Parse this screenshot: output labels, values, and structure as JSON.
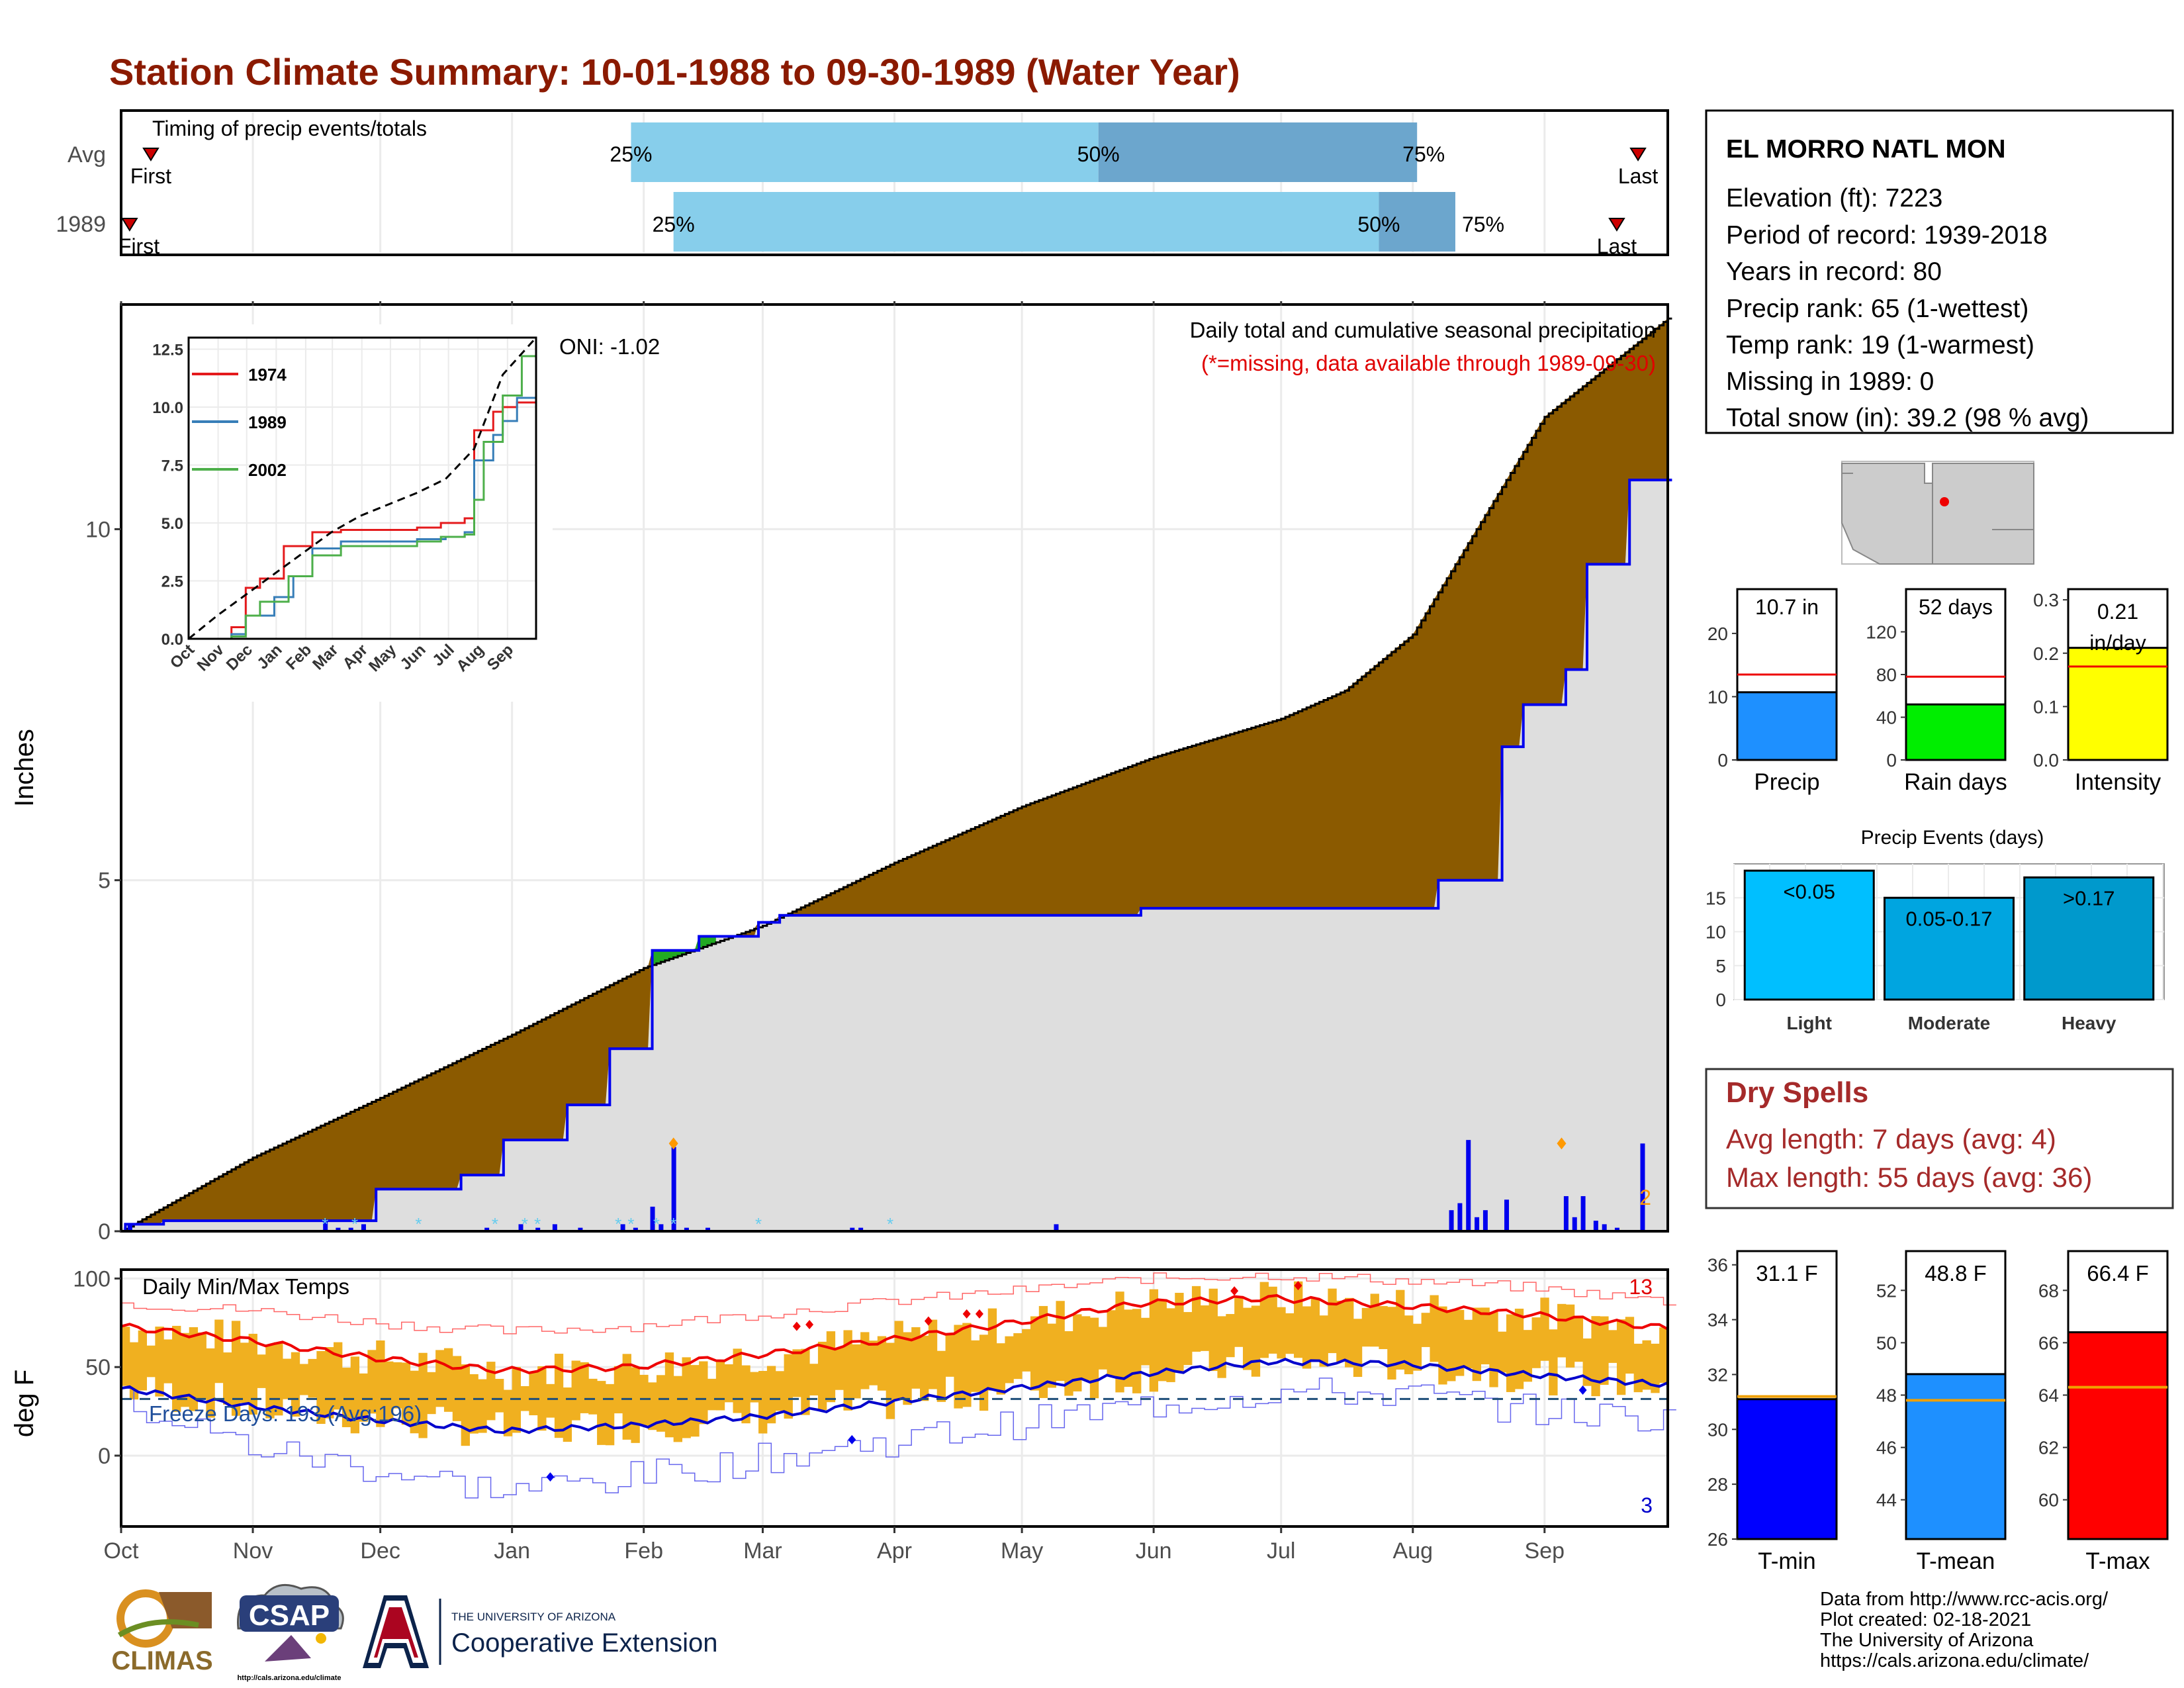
{
  "title": "Station Climate Summary: 10-01-1988 to 09-30-1989 (Water Year)",
  "station": {
    "name": "EL MORRO NATL MON",
    "lines": [
      "Elevation (ft): 7223",
      "Period of record: 1939-2018",
      "Years in record: 80",
      "Precip rank: 65 (1-wettest)",
      "Temp rank: 19 (1-warmest)",
      "Missing in 1989: 0",
      "Total snow (in): 39.2 (98 % avg)"
    ]
  },
  "months": [
    "Oct",
    "Nov",
    "Dec",
    "Jan",
    "Feb",
    "Mar",
    "Apr",
    "May",
    "Jun",
    "Jul",
    "Aug",
    "Sep"
  ],
  "timing": {
    "title": "Timing of precip events/totals",
    "rows": [
      {
        "label": "Avg",
        "first_doy": 7,
        "q25_doy": 120,
        "q50_doy": 230,
        "q75_doy": 305,
        "last_doy": 357,
        "first_label": "First",
        "last_label": "Last",
        "q25_label": "25%",
        "q50_label": "50%",
        "q75_label": "75%"
      },
      {
        "label": "1989",
        "first_doy": 2,
        "q25_doy": 130,
        "q50_doy": 296,
        "q75_doy": 314,
        "last_doy": 352,
        "first_label": "First",
        "last_label": "Last",
        "q25_label": "25%",
        "q50_label": "50%",
        "q75_label": "75%"
      }
    ]
  },
  "precip_panel": {
    "ylabel": "Inches",
    "y_ticks": [
      0,
      5,
      10
    ],
    "title": "Daily total and cumulative seasonal precipitation",
    "subtitle": "(*=missing, data available through 1989-09-30)",
    "oni": "ONI: -1.02",
    "corner_count": "2"
  },
  "inset": {
    "y_ticks": [
      "0.0",
      "2.5",
      "5.0",
      "7.5",
      "10.0",
      "12.5"
    ],
    "months": [
      "Oct",
      "Nov",
      "Dec",
      "Jan",
      "Feb",
      "Mar",
      "Apr",
      "May",
      "Jun",
      "Jul",
      "Aug",
      "Sep"
    ],
    "legend": [
      "1974",
      "1989",
      "2002"
    ]
  },
  "temp_panel": {
    "ylabel": "deg F",
    "title": "Daily Min/Max Temps",
    "freeze": "Freeze Days: 193 (Avg:196)",
    "count_hot": "13",
    "count_cold": "3",
    "y_ticks": [
      "0",
      "50",
      "100"
    ]
  },
  "small_bars": [
    {
      "xlabel": "Precip",
      "value_label": "10.7 in",
      "value": 10.7,
      "avg": 13.5,
      "ymax": 27,
      "ticks": [
        "0",
        "10",
        "20"
      ],
      "color": "#1e90ff"
    },
    {
      "xlabel": "Rain days",
      "value_label": "52 days",
      "value": 52,
      "avg": 78,
      "ymax": 160,
      "ticks": [
        "0",
        "40",
        "80",
        "120"
      ],
      "color": "#00ee00"
    },
    {
      "xlabel": "Intensity",
      "value_label": "0.21 in/day",
      "value": 0.21,
      "avg": 0.175,
      "ymax": 0.32,
      "ticks": [
        "0.0",
        "0.1",
        "0.2",
        "0.3"
      ],
      "color": "#ffff00"
    }
  ],
  "events": {
    "title": "Precip Events (days)",
    "ticks": [
      "0",
      "5",
      "10",
      "15"
    ],
    "bars": [
      {
        "label": "Light",
        "value_label": "<0.05",
        "value": 19,
        "color": "#00bfff"
      },
      {
        "label": "Moderate",
        "value_label": "0.05-0.17",
        "value": 15,
        "color": "#00a5e0"
      },
      {
        "label": "Heavy",
        "value_label": ">0.17",
        "value": 18,
        "color": "#0099cc"
      }
    ]
  },
  "dry_spells": {
    "title": "Dry Spells",
    "avg_line": "Avg length: 7 days (avg: 4)",
    "max_line": "Max length: 55 days (avg: 36)"
  },
  "temp_bars": [
    {
      "xlabel": "T-min",
      "value_label": "31.1 F",
      "value": 31.1,
      "avg": 31.2,
      "ymin": 26,
      "ymax": 36.5,
      "ticks": [
        "26",
        "28",
        "30",
        "32",
        "34",
        "36"
      ],
      "color": "#0000ff"
    },
    {
      "xlabel": "T-mean",
      "value_label": "48.8 F",
      "value": 48.8,
      "avg": 47.8,
      "ymin": 42.5,
      "ymax": 53.5,
      "ticks": [
        "44",
        "46",
        "48",
        "50",
        "52"
      ],
      "color": "#1e90ff"
    },
    {
      "xlabel": "T-max",
      "value_label": "66.4 F",
      "value": 66.4,
      "avg": 64.3,
      "ymin": 58.5,
      "ymax": 69.5,
      "ticks": [
        "60",
        "62",
        "64",
        "66",
        "68"
      ],
      "color": "#ff0000"
    }
  ],
  "credits": [
    "Data from http://www.rcc-acis.org/",
    "Plot created: 02-18-2021",
    "The University of Arizona",
    "https://cals.arizona.edu/climate/"
  ],
  "logos": {
    "climas": "CLIMAS",
    "csap": "CSAP",
    "csap_url": "http://cals.arizona.edu/climate",
    "ua_line1": "THE UNIVERSITY OF ARIZONA",
    "ua_line2": "Cooperative Extension"
  },
  "chart_data": [
    {
      "type": "area",
      "title": "Daily total and cumulative seasonal precipitation",
      "ylabel": "Inches",
      "ylim": [
        0,
        13.2
      ],
      "x_unit": "day of water year",
      "series": [
        {
          "name": "Average cumulative",
          "x": [
            0,
            31,
            61,
            92,
            123,
            151,
            182,
            212,
            243,
            273,
            288,
            304,
            335,
            364
          ],
          "y": [
            0,
            1.05,
            1.9,
            2.8,
            3.75,
            4.35,
            5.25,
            6.05,
            6.75,
            7.3,
            7.7,
            8.5,
            11.6,
            13.0
          ]
        },
        {
          "name": "1989 cumulative",
          "x": [
            0,
            1,
            10,
            48,
            60,
            80,
            90,
            105,
            115,
            125,
            136,
            150,
            155,
            170,
            240,
            310,
            325,
            330,
            340,
            345,
            355,
            365
          ],
          "y": [
            0,
            0.1,
            0.15,
            0.15,
            0.6,
            0.8,
            1.3,
            1.8,
            2.6,
            4.0,
            4.2,
            4.4,
            4.5,
            4.5,
            4.6,
            5.0,
            6.9,
            7.5,
            8.0,
            9.5,
            10.7,
            10.7
          ]
        }
      ],
      "daily_bars": {
        "x": [
          2,
          48,
          51,
          54,
          57,
          86,
          94,
          98,
          102,
          108,
          118,
          121,
          125,
          127,
          130,
          133,
          138,
          172,
          174,
          220,
          313,
          315,
          317,
          319,
          321,
          326,
          340,
          342,
          344,
          347,
          349,
          352,
          358
        ],
        "y": [
          0.1,
          0.15,
          0.05,
          0.05,
          0.1,
          0.05,
          0.1,
          0.05,
          0.1,
          0.05,
          0.1,
          0.05,
          0.35,
          0.1,
          1.2,
          0.05,
          0.05,
          0.05,
          0.05,
          0.1,
          0.3,
          0.4,
          1.3,
          0.2,
          0.3,
          0.45,
          0.5,
          0.2,
          0.5,
          0.15,
          0.1,
          0.05,
          1.25
        ]
      }
    },
    {
      "type": "line",
      "title": "",
      "xlabel": "",
      "ylabel": "",
      "ylim": [
        0,
        13
      ],
      "series": [
        {
          "name": "1974",
          "x": [
            0,
            45,
            60,
            75,
            100,
            130,
            160,
            240,
            265,
            275,
            290,
            300,
            320,
            330,
            345,
            365
          ],
          "y": [
            0,
            0.5,
            2.2,
            2.6,
            4.0,
            4.6,
            4.7,
            4.8,
            5.0,
            5.0,
            5.2,
            9.0,
            9.8,
            10.0,
            10.2,
            10.5
          ]
        },
        {
          "name": "1989",
          "x": [
            0,
            45,
            60,
            90,
            110,
            130,
            160,
            240,
            270,
            290,
            300,
            320,
            330,
            345,
            365
          ],
          "y": [
            0,
            0.2,
            1.0,
            1.8,
            2.7,
            3.9,
            4.2,
            4.3,
            4.4,
            4.6,
            7.7,
            8.8,
            9.4,
            10.4,
            10.7
          ]
        },
        {
          "name": "2002",
          "x": [
            0,
            45,
            60,
            75,
            105,
            130,
            160,
            240,
            265,
            290,
            300,
            310,
            330,
            350,
            365
          ],
          "y": [
            0,
            0.1,
            1.0,
            1.6,
            2.7,
            3.6,
            4.0,
            4.2,
            4.4,
            4.5,
            6.0,
            8.5,
            10.5,
            12.2,
            12.2
          ]
        },
        {
          "name": "Average",
          "x": [
            0,
            30,
            60,
            90,
            120,
            150,
            180,
            210,
            240,
            270,
            300,
            330,
            365
          ],
          "y": [
            0,
            1.0,
            1.9,
            2.8,
            3.7,
            4.6,
            5.3,
            5.8,
            6.3,
            6.9,
            8.2,
            11.4,
            13.0
          ]
        }
      ]
    },
    {
      "type": "line",
      "title": "Daily Min/Max Temps",
      "ylabel": "deg F",
      "ylim": [
        -40,
        105
      ],
      "series": [
        {
          "name": "Avg max",
          "x": [
            0,
            30,
            60,
            90,
            120,
            150,
            180,
            210,
            240,
            270,
            300,
            330,
            364
          ],
          "y": [
            73,
            65,
            55,
            48,
            50,
            57,
            65,
            75,
            86,
            89,
            85,
            80,
            72
          ]
        },
        {
          "name": "Avg min",
          "x": [
            0,
            30,
            60,
            90,
            120,
            150,
            180,
            210,
            240,
            270,
            300,
            330,
            364
          ],
          "y": [
            38,
            28,
            20,
            14,
            17,
            22,
            30,
            38,
            46,
            53,
            52,
            46,
            40
          ]
        },
        {
          "name": "Record max",
          "x": [
            0,
            30,
            60,
            90,
            120,
            150,
            180,
            210,
            240,
            270,
            300,
            330,
            364
          ],
          "y": [
            86,
            82,
            75,
            70,
            73,
            80,
            87,
            93,
            100,
            102,
            99,
            95,
            87
          ]
        },
        {
          "name": "Record min",
          "x": [
            0,
            30,
            60,
            90,
            120,
            150,
            180,
            210,
            240,
            270,
            300,
            330,
            364
          ],
          "y": [
            30,
            5,
            -8,
            -20,
            -12,
            -2,
            8,
            18,
            28,
            36,
            35,
            26,
            20
          ]
        },
        {
          "name": "Freeze line",
          "x": [
            0,
            364
          ],
          "y": [
            32,
            32
          ]
        }
      ]
    },
    {
      "type": "bar",
      "title": "Precip Events (days)",
      "categories": [
        "Light",
        "Moderate",
        "Heavy"
      ],
      "values": [
        19,
        15,
        18
      ]
    },
    {
      "type": "bar",
      "categories": [
        "Precip",
        "Rain days",
        "Intensity"
      ],
      "values": [
        10.7,
        52,
        0.21
      ],
      "averages": [
        13.5,
        78,
        0.175
      ]
    },
    {
      "type": "bar",
      "categories": [
        "T-min",
        "T-mean",
        "T-max"
      ],
      "values": [
        31.1,
        48.8,
        66.4
      ],
      "averages": [
        31.2,
        47.8,
        64.3
      ]
    }
  ]
}
